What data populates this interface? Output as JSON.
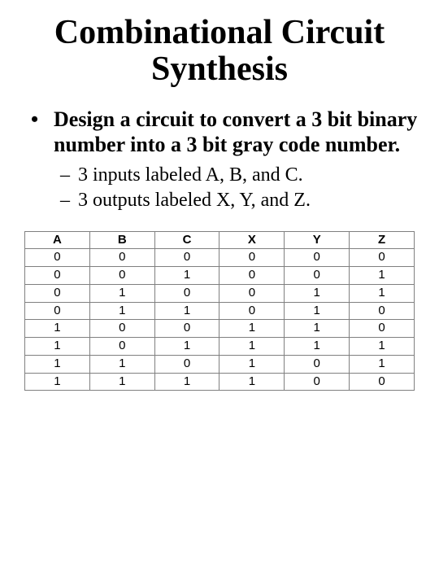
{
  "title": "Combinational Circuit Synthesis",
  "bullets": {
    "main": "Design a circuit to convert a 3 bit binary number into a 3 bit gray code number.",
    "sub1": "3 inputs labeled A, B, and C.",
    "sub2": "3 outputs labeled X, Y, and Z."
  },
  "table": {
    "type": "table",
    "columns": [
      "A",
      "B",
      "C",
      "X",
      "Y",
      "Z"
    ],
    "rows": [
      [
        "0",
        "0",
        "0",
        "0",
        "0",
        "0"
      ],
      [
        "0",
        "0",
        "1",
        "0",
        "0",
        "1"
      ],
      [
        "0",
        "1",
        "0",
        "0",
        "1",
        "1"
      ],
      [
        "0",
        "1",
        "1",
        "0",
        "1",
        "0"
      ],
      [
        "1",
        "0",
        "0",
        "1",
        "1",
        "0"
      ],
      [
        "1",
        "0",
        "1",
        "1",
        "1",
        "1"
      ],
      [
        "1",
        "1",
        "0",
        "1",
        "0",
        "1"
      ],
      [
        "1",
        "1",
        "1",
        "1",
        "0",
        "0"
      ]
    ],
    "border_color": "#808080",
    "background_color": "#ffffff",
    "header_fontweight": "bold",
    "cell_fontsize": 15,
    "cell_font": "Arial"
  },
  "style": {
    "title_fontsize": 42,
    "title_fontweight": "bold",
    "l1_fontsize": 26,
    "l2_fontsize": 24,
    "font_family": "Times New Roman",
    "text_color": "#000000",
    "background_color": "#ffffff"
  }
}
